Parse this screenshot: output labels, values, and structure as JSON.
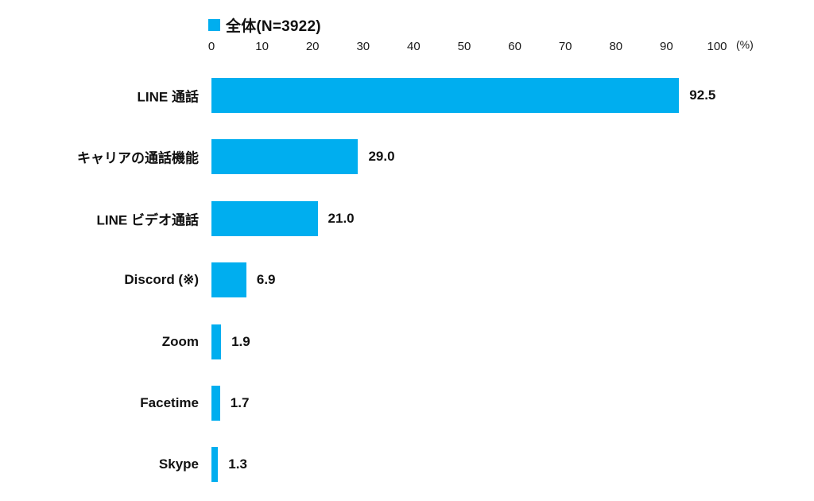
{
  "chart_data": {
    "type": "bar",
    "orientation": "horizontal",
    "legend": {
      "label": "全体(N=3922)",
      "position": "top"
    },
    "categories": [
      "LINE 通話",
      "キャリアの通話機能",
      "LINE ビデオ通話",
      "Discord (※)",
      "Zoom",
      "Facetime",
      "Skype"
    ],
    "values": [
      92.5,
      29.0,
      21.0,
      6.9,
      1.9,
      1.7,
      1.3
    ],
    "value_decimals": 1,
    "xlabel": "",
    "ylabel": "",
    "axis": {
      "min": 0,
      "max": 100,
      "tick_step": 10,
      "ticks": [
        0,
        10,
        20,
        30,
        40,
        50,
        60,
        70,
        80,
        90,
        100
      ],
      "unit_label": "(%)"
    },
    "grid": false,
    "bar_color": "#00AEEF",
    "text_color": "#111111",
    "background_color": "#ffffff"
  }
}
